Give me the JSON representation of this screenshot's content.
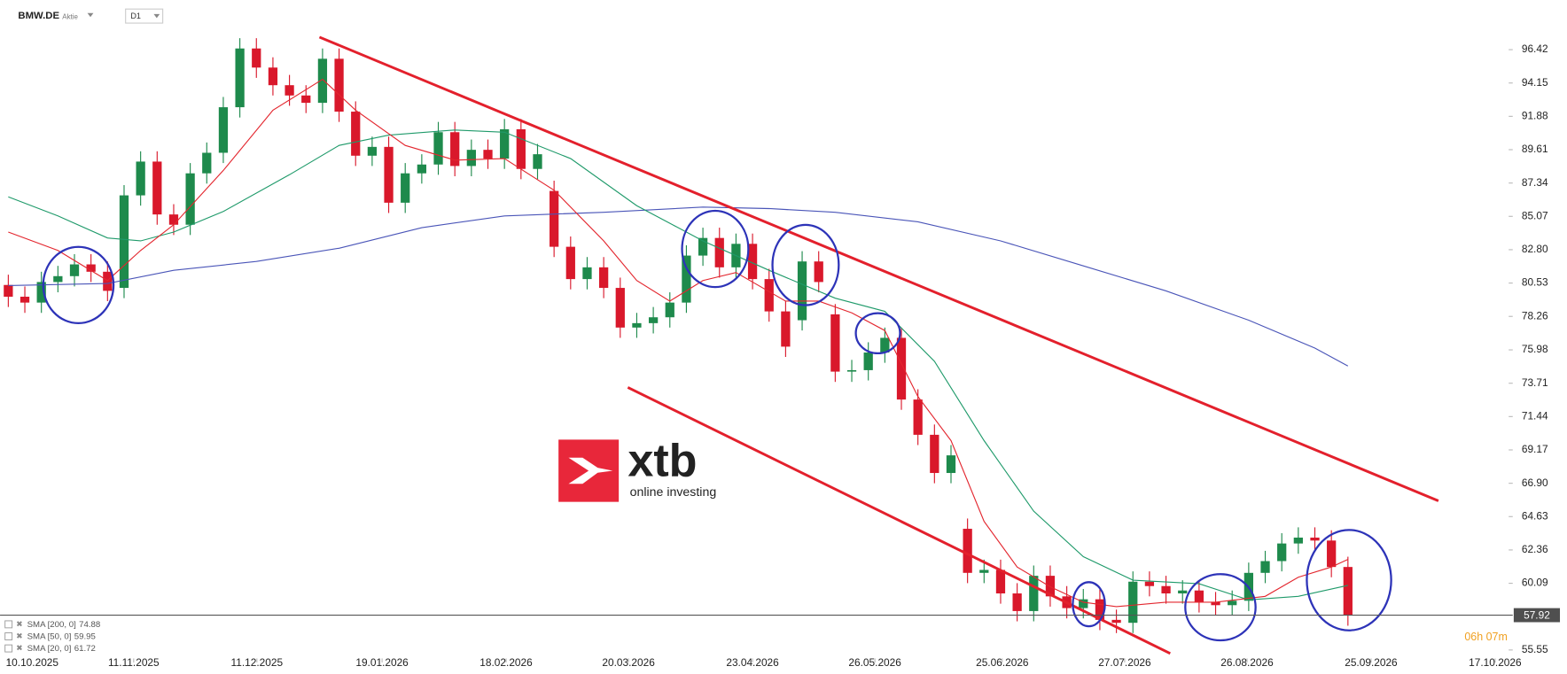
{
  "chart_data": {
    "type": "candlestick",
    "symbol": "BMW.DE",
    "instrument_type": "Aktie",
    "timeframe": "D1",
    "countdown": "06h 07m",
    "logo": {
      "brand": "xtb",
      "tagline": "online investing"
    },
    "grid": false,
    "up_color": "#1e8a4c",
    "down_color": "#d9182b",
    "xlim": [
      -0.5,
      90.6
    ],
    "xticks": [
      {
        "value": 0,
        "label": "10.10.2025"
      },
      {
        "value": 7.58,
        "label": "11.11.2025"
      },
      {
        "value": 15.03,
        "label": "11.12.2025"
      },
      {
        "value": 22.6,
        "label": "19.01.2026"
      },
      {
        "value": 30.1,
        "label": "18.02.2026"
      },
      {
        "value": 37.5,
        "label": "20.03.2026"
      },
      {
        "value": 45.0,
        "label": "23.04.2026"
      },
      {
        "value": 52.4,
        "label": "26.05.2026"
      },
      {
        "value": 60.1,
        "label": "25.06.2026"
      },
      {
        "value": 67.5,
        "label": "27.07.2026"
      },
      {
        "value": 74.9,
        "label": "26.08.2026"
      },
      {
        "value": 82.4,
        "label": "25.09.2026"
      },
      {
        "value": 89.9,
        "label": "17.10.2026"
      }
    ],
    "ylim": [
      54.7,
      99.8
    ],
    "yticks": [
      96.42,
      94.15,
      91.88,
      89.61,
      87.34,
      85.07,
      {
        "value": 82.8,
        "label": "82.80"
      },
      80.53,
      78.26,
      75.98,
      73.71,
      71.44,
      69.17,
      {
        "value": 66.9,
        "label": "66.90"
      },
      64.63,
      62.36,
      60.09,
      55.55
    ],
    "open": [
      80.4,
      79.6,
      79.2,
      80.6,
      81.0,
      81.8,
      81.3,
      80.2,
      86.5,
      88.8,
      85.2,
      84.5,
      88.0,
      89.4,
      92.5,
      96.5,
      95.2,
      94.0,
      93.3,
      92.8,
      95.8,
      92.2,
      89.2,
      89.8,
      86.0,
      88.0,
      88.6,
      90.8,
      88.5,
      89.6,
      89.0,
      91.0,
      88.3,
      86.8,
      83.0,
      80.8,
      81.6,
      80.2,
      77.5,
      77.8,
      78.2,
      79.2,
      82.4,
      83.6,
      81.6,
      83.2,
      80.8,
      78.6,
      78.0,
      82.0,
      78.4,
      74.5,
      74.6,
      75.8,
      76.8,
      72.6,
      70.2,
      67.6,
      63.8,
      60.8,
      61.0,
      59.4,
      58.2,
      60.6,
      59.2,
      58.4,
      59.0,
      57.6,
      57.4,
      60.2,
      59.9,
      59.4,
      59.6,
      58.8,
      58.6,
      58.9,
      60.8,
      61.6,
      62.8,
      63.2,
      63.0,
      61.2
    ],
    "high": [
      81.1,
      80.3,
      81.3,
      81.7,
      82.5,
      82.5,
      82.0,
      87.2,
      89.5,
      89.5,
      85.9,
      88.7,
      90.1,
      93.2,
      97.2,
      97.2,
      95.9,
      94.7,
      94.0,
      96.5,
      96.5,
      92.9,
      90.5,
      90.5,
      88.7,
      89.3,
      91.5,
      91.5,
      90.3,
      90.3,
      91.7,
      91.7,
      90.0,
      87.5,
      83.7,
      82.3,
      82.3,
      80.9,
      78.5,
      78.9,
      79.9,
      83.1,
      84.3,
      84.3,
      83.9,
      83.9,
      81.5,
      79.3,
      82.7,
      82.7,
      79.1,
      75.3,
      76.5,
      77.5,
      77.5,
      73.3,
      70.9,
      69.5,
      64.5,
      61.7,
      61.7,
      60.1,
      61.3,
      61.3,
      59.9,
      59.7,
      59.7,
      58.3,
      60.9,
      60.9,
      60.6,
      60.3,
      60.3,
      59.5,
      59.6,
      61.5,
      62.3,
      63.5,
      63.9,
      63.9,
      63.7,
      61.9
    ],
    "low": [
      78.9,
      78.5,
      78.5,
      79.9,
      80.3,
      80.6,
      79.3,
      79.5,
      85.8,
      84.5,
      83.8,
      83.8,
      87.3,
      88.7,
      91.8,
      94.5,
      93.3,
      92.6,
      92.1,
      92.1,
      91.5,
      88.5,
      88.5,
      85.3,
      85.3,
      87.3,
      87.9,
      87.8,
      87.8,
      88.3,
      88.3,
      87.6,
      87.6,
      82.3,
      80.1,
      80.1,
      79.5,
      76.8,
      76.8,
      77.1,
      77.5,
      78.5,
      81.7,
      80.9,
      80.9,
      80.1,
      77.9,
      75.5,
      77.3,
      79.9,
      73.8,
      73.8,
      73.9,
      75.1,
      71.9,
      69.5,
      66.9,
      66.9,
      60.1,
      60.1,
      58.7,
      57.5,
      57.5,
      58.5,
      57.7,
      57.7,
      56.9,
      56.7,
      56.7,
      59.2,
      58.7,
      58.7,
      58.1,
      57.9,
      57.9,
      58.2,
      60.1,
      60.9,
      62.1,
      62.3,
      60.5,
      57.2
    ],
    "close": [
      79.6,
      79.2,
      80.6,
      81.0,
      81.8,
      81.3,
      80.0,
      86.5,
      88.8,
      85.2,
      84.5,
      88.0,
      89.4,
      92.5,
      96.5,
      95.2,
      94.0,
      93.3,
      92.8,
      95.8,
      92.2,
      89.2,
      89.8,
      86.0,
      88.0,
      88.6,
      90.8,
      88.5,
      89.6,
      89.0,
      91.0,
      88.3,
      89.3,
      83.0,
      80.8,
      81.6,
      80.2,
      77.5,
      77.8,
      78.2,
      79.2,
      82.4,
      83.6,
      81.6,
      83.2,
      80.8,
      78.6,
      76.2,
      82.0,
      80.6,
      74.5,
      74.6,
      75.8,
      76.8,
      72.6,
      70.2,
      67.6,
      68.8,
      60.8,
      61.0,
      59.4,
      58.2,
      60.6,
      59.2,
      58.4,
      59.0,
      57.6,
      57.4,
      60.2,
      59.9,
      59.4,
      59.6,
      58.8,
      58.6,
      58.9,
      60.8,
      61.6,
      62.8,
      63.2,
      63.0,
      61.2,
      57.92
    ],
    "series": [
      {
        "name": "SMA [200, 0]",
        "color": "#4a55b8",
        "x": [
          0,
          6,
          10,
          15,
          20,
          25,
          30,
          36,
          42,
          46,
          50,
          55,
          60,
          65,
          70,
          75,
          79,
          81
        ],
        "values": [
          80.36,
          80.5,
          81.4,
          82.0,
          82.9,
          84.3,
          85.1,
          85.35,
          85.7,
          85.6,
          85.35,
          84.7,
          83.4,
          81.7,
          80.0,
          78.0,
          76.1,
          74.88
        ]
      },
      {
        "name": "SMA [50, 0]",
        "color": "#1f9a6a",
        "x": [
          0,
          3,
          6,
          8,
          10,
          13,
          17,
          20,
          23,
          27,
          30,
          34,
          38,
          42,
          46,
          50,
          53,
          56,
          59,
          62,
          65,
          68,
          72,
          75,
          78,
          81
        ],
        "values": [
          86.4,
          85.1,
          83.6,
          83.4,
          84.0,
          85.4,
          87.9,
          89.9,
          90.6,
          90.95,
          90.8,
          89.0,
          85.8,
          83.4,
          81.4,
          79.5,
          78.6,
          75.2,
          69.8,
          65.0,
          61.9,
          60.3,
          60.06,
          58.96,
          59.2,
          59.95
        ]
      },
      {
        "name": "SMA [20, 0]",
        "color": "#e3262e",
        "x": [
          0,
          3,
          6,
          8,
          10,
          13,
          16,
          19,
          21,
          24,
          27,
          30,
          33,
          36,
          38,
          40,
          42,
          44,
          47,
          49,
          51,
          53,
          55,
          57,
          59,
          61,
          63,
          65,
          67,
          70,
          73,
          76,
          78,
          80,
          81
        ],
        "values": [
          84.0,
          82.75,
          80.7,
          82.75,
          84.5,
          88.2,
          92.3,
          94.4,
          92.3,
          89.9,
          88.9,
          89.0,
          86.85,
          83.4,
          80.7,
          79.3,
          80.7,
          81.25,
          79.3,
          79.3,
          78.5,
          77.3,
          72.8,
          69.8,
          64.3,
          61.2,
          59.85,
          58.8,
          58.5,
          58.8,
          58.8,
          59.2,
          60.5,
          61.2,
          61.72
        ]
      }
    ]
  }
}
